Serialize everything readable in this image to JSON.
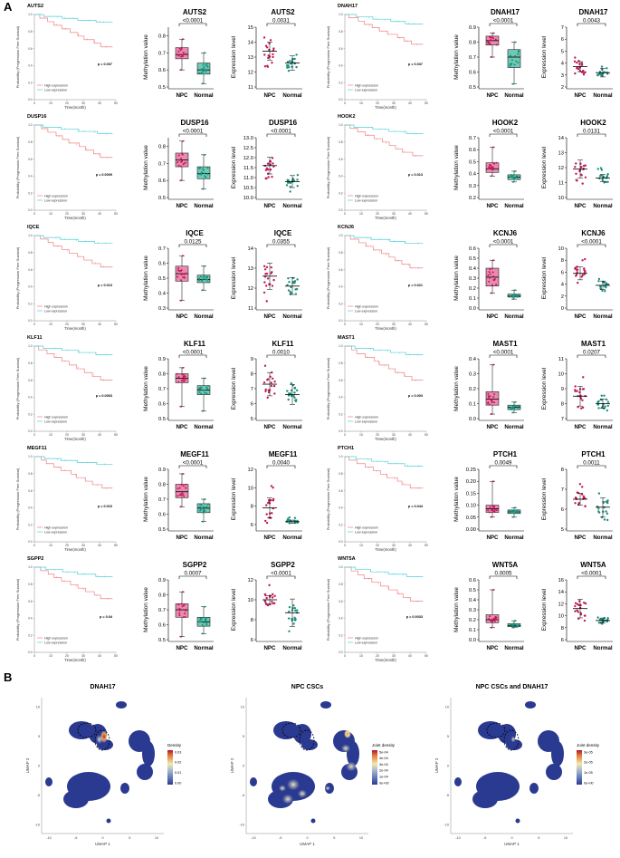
{
  "panels": {
    "a": "A",
    "b": "B"
  },
  "km": {
    "y_label": "Probability (Progression Free Survival)",
    "x_label": "Time(month)",
    "x_ticks": [
      "0",
      "10",
      "20",
      "30",
      "40",
      "50"
    ],
    "y_ticks": [
      "0.0",
      "0.2",
      "0.4",
      "0.6",
      "0.8",
      "1.0"
    ],
    "legend": [
      "High expression",
      "Low expression"
    ]
  },
  "box_axis": {
    "meth_label": "Methylation value",
    "expr_label": "Expression level",
    "groups": [
      "NPC",
      "Normal"
    ]
  },
  "genes": [
    {
      "name": "AUTS2",
      "km_p": "p = 0.007",
      "km_high_end": 0.62,
      "km_low_end": 0.91,
      "meth": {
        "p": "<0.0001",
        "ticks": [
          "0.5",
          "0.6",
          "0.7",
          "0.8"
        ],
        "ylim": [
          0.5,
          0.85
        ],
        "npc": [
          0.6,
          0.665,
          0.69,
          0.73,
          0.78
        ],
        "normal": [
          0.52,
          0.575,
          0.6,
          0.64,
          0.7
        ]
      },
      "expr": {
        "p": "0.0031",
        "ticks": [
          "11",
          "12",
          "13",
          "14",
          "15"
        ],
        "ylim": [
          11,
          15
        ],
        "npc": [
          12.4,
          13.4,
          12.3,
          14.4
        ],
        "normal": [
          11.8,
          12.6,
          11.9,
          13.2
        ]
      }
    },
    {
      "name": "DUSP16",
      "km_p": "p = 0.0009",
      "km_high_end": 0.62,
      "km_low_end": 0.9,
      "meth": {
        "p": "<0.0001",
        "ticks": [
          "0.5",
          "0.6",
          "0.7",
          "0.8"
        ],
        "ylim": [
          0.5,
          0.85
        ],
        "npc": [
          0.6,
          0.68,
          0.72,
          0.76,
          0.83
        ],
        "normal": [
          0.55,
          0.61,
          0.64,
          0.68,
          0.75
        ]
      },
      "expr": {
        "p": "<0.0001",
        "ticks": [
          "10.0",
          "10.5",
          "11.0",
          "11.5",
          "12.0",
          "12.5",
          "13.0"
        ],
        "ylim": [
          10,
          13
        ],
        "npc": [
          10.9,
          11.6,
          10.8,
          12.6
        ],
        "normal": [
          10.3,
          10.8,
          10.2,
          11.3
        ]
      }
    },
    {
      "name": "IQCE",
      "km_p": "p = 0.013",
      "km_high_end": 0.63,
      "km_low_end": 0.91,
      "meth": {
        "p": "0.0125",
        "ticks": [
          "0.3",
          "0.4",
          "0.5",
          "0.6",
          "0.7"
        ],
        "ylim": [
          0.3,
          0.7
        ],
        "npc": [
          0.35,
          0.48,
          0.53,
          0.58,
          0.65
        ],
        "normal": [
          0.42,
          0.47,
          0.49,
          0.52,
          0.58
        ]
      },
      "expr": {
        "p": "0.0355",
        "ticks": [
          "11",
          "12",
          "13",
          "14"
        ],
        "ylim": [
          11,
          14
        ],
        "npc": [
          11.5,
          12.6,
          11.3,
          13.3
        ],
        "normal": [
          11.4,
          12.1,
          11.2,
          12.8
        ]
      }
    },
    {
      "name": "KLF11",
      "km_p": "p = 0.0063",
      "km_high_end": 0.6,
      "km_low_end": 0.9,
      "meth": {
        "p": "<0.0001",
        "ticks": [
          "0.5",
          "0.6",
          "0.7",
          "0.8",
          "0.9"
        ],
        "ylim": [
          0.5,
          0.9
        ],
        "npc": [
          0.58,
          0.74,
          0.77,
          0.8,
          0.84
        ],
        "normal": [
          0.55,
          0.66,
          0.69,
          0.72,
          0.77
        ]
      },
      "expr": {
        "p": "0.0010",
        "ticks": [
          "5",
          "6",
          "7",
          "8",
          "9"
        ],
        "ylim": [
          5,
          9
        ],
        "npc": [
          6.0,
          7.3,
          6.1,
          8.6
        ],
        "normal": [
          5.5,
          6.6,
          5.6,
          7.5
        ]
      }
    },
    {
      "name": "MEGF11",
      "km_p": "p = 0.010",
      "km_high_end": 0.63,
      "km_low_end": 0.91,
      "meth": {
        "p": "<0.0001",
        "ticks": [
          "0.5",
          "0.6",
          "0.7",
          "0.8",
          "0.9"
        ],
        "ylim": [
          0.5,
          0.9
        ],
        "npc": [
          0.65,
          0.71,
          0.75,
          0.8,
          0.87
        ],
        "normal": [
          0.55,
          0.61,
          0.64,
          0.67,
          0.7
        ]
      },
      "expr": {
        "p": "0.0040",
        "ticks": [
          "6",
          "8",
          "10",
          "12"
        ],
        "ylim": [
          5.5,
          12
        ],
        "npc": [
          6.0,
          7.8,
          6.1,
          10.5
        ],
        "normal": [
          6.0,
          6.3,
          6.1,
          6.8
        ]
      }
    },
    {
      "name": "SGPP2",
      "km_p": "p = 0.04",
      "km_high_end": 0.63,
      "km_low_end": 0.89,
      "meth": {
        "p": "0.0007",
        "ticks": [
          "0.5",
          "0.6",
          "0.7",
          "0.8",
          "0.9"
        ],
        "ylim": [
          0.5,
          0.9
        ],
        "npc": [
          0.52,
          0.65,
          0.7,
          0.74,
          0.82
        ],
        "normal": [
          0.54,
          0.59,
          0.62,
          0.65,
          0.72
        ]
      },
      "expr": {
        "p": "<0.0001",
        "ticks": [
          "6",
          "8",
          "10",
          "12"
        ],
        "ylim": [
          6,
          12
        ],
        "npc": [
          9.3,
          10.0,
          9.2,
          11.5
        ],
        "normal": [
          6.4,
          8.7,
          6.5,
          9.6
        ]
      }
    },
    {
      "name": "DNAH17",
      "km_p": "p = 0.037",
      "km_high_end": 0.65,
      "km_low_end": 0.89,
      "meth": {
        "p": "<0.0001",
        "ticks": [
          "0.5",
          "0.6",
          "0.7",
          "0.8",
          "0.9"
        ],
        "ylim": [
          0.5,
          0.9
        ],
        "npc": [
          0.7,
          0.78,
          0.81,
          0.84,
          0.86
        ],
        "normal": [
          0.52,
          0.63,
          0.7,
          0.75,
          0.8
        ]
      },
      "expr": {
        "p": "0.0043",
        "ticks": [
          "2",
          "3",
          "4",
          "5",
          "6",
          "7"
        ],
        "ylim": [
          2,
          7
        ],
        "npc": [
          3.0,
          3.7,
          3.0,
          5.1
        ],
        "normal": [
          2.6,
          3.2,
          2.7,
          3.8
        ]
      }
    },
    {
      "name": "HOOK2",
      "km_p": "p = 0.013",
      "km_high_end": 0.64,
      "km_low_end": 0.9,
      "meth": {
        "p": "<0.0001",
        "ticks": [
          "0.2",
          "0.3",
          "0.4",
          "0.5",
          "0.6",
          "0.7"
        ],
        "ylim": [
          0.2,
          0.7
        ],
        "npc": [
          0.38,
          0.41,
          0.44,
          0.49,
          0.62
        ],
        "normal": [
          0.33,
          0.35,
          0.37,
          0.39,
          0.42
        ]
      },
      "expr": {
        "p": "0.0131",
        "ticks": [
          "10",
          "11",
          "12",
          "13",
          "14"
        ],
        "ylim": [
          10,
          14
        ],
        "npc": [
          10.9,
          11.9,
          10.8,
          13.1
        ],
        "normal": [
          10.9,
          11.3,
          10.8,
          12.0
        ]
      }
    },
    {
      "name": "KCNJ6",
      "km_p": "p = 0.021",
      "km_high_end": 0.62,
      "km_low_end": 0.91,
      "meth": {
        "p": "<0.0001",
        "ticks": [
          "0.0",
          "0.1",
          "0.2",
          "0.3",
          "0.4",
          "0.5",
          "0.6"
        ],
        "ylim": [
          0,
          0.6
        ],
        "npc": [
          0.15,
          0.22,
          0.31,
          0.4,
          0.48
        ],
        "normal": [
          0.09,
          0.11,
          0.12,
          0.14,
          0.18
        ]
      },
      "expr": {
        "p": "<0.0001",
        "ticks": [
          "0",
          "2",
          "4",
          "6",
          "8",
          "10"
        ],
        "ylim": [
          0,
          10
        ],
        "npc": [
          4.0,
          5.8,
          4.1,
          8.5
        ],
        "normal": [
          2.6,
          3.8,
          2.7,
          5.0
        ]
      }
    },
    {
      "name": "MAST1",
      "km_p": "p = 0.003",
      "km_high_end": 0.6,
      "km_low_end": 0.9,
      "meth": {
        "p": "<0.0001",
        "ticks": [
          "0.0",
          "0.1",
          "0.2",
          "0.3",
          "0.4"
        ],
        "ylim": [
          0,
          0.4
        ],
        "npc": [
          0.03,
          0.09,
          0.13,
          0.18,
          0.36
        ],
        "normal": [
          0.04,
          0.06,
          0.075,
          0.09,
          0.11
        ]
      },
      "expr": {
        "p": "0.0207",
        "ticks": [
          "7",
          "8",
          "9",
          "10",
          "11"
        ],
        "ylim": [
          7,
          11
        ],
        "npc": [
          7.4,
          8.5,
          7.3,
          10.4
        ],
        "normal": [
          7.5,
          8.0,
          7.4,
          8.6
        ]
      }
    },
    {
      "name": "PTCH1",
      "km_p": "p = 0.044",
      "km_high_end": 0.63,
      "km_low_end": 0.89,
      "meth": {
        "p": "0.0049",
        "ticks": [
          "0.00",
          "0.05",
          "0.10",
          "0.15",
          "0.20",
          "0.25"
        ],
        "ylim": [
          0,
          0.25
        ],
        "npc": [
          0.05,
          0.07,
          0.085,
          0.1,
          0.2
        ],
        "normal": [
          0.05,
          0.065,
          0.072,
          0.08,
          0.09
        ]
      },
      "expr": {
        "p": "0.0011",
        "ticks": [
          "5",
          "6",
          "7",
          "8"
        ],
        "ylim": [
          5,
          8
        ],
        "npc": [
          6.0,
          6.5,
          6.0,
          7.5
        ],
        "normal": [
          5.3,
          6.1,
          5.4,
          6.8
        ]
      }
    },
    {
      "name": "WNT5A",
      "km_p": "p = 0.0033",
      "km_high_end": 0.6,
      "km_low_end": 0.89,
      "meth": {
        "p": "0.0005",
        "ticks": [
          "0.0",
          "0.1",
          "0.2",
          "0.3",
          "0.4",
          "0.5",
          "0.6"
        ],
        "ylim": [
          0,
          0.6
        ],
        "npc": [
          0.12,
          0.17,
          0.2,
          0.25,
          0.5
        ],
        "normal": [
          0.12,
          0.13,
          0.14,
          0.16,
          0.19
        ]
      },
      "expr": {
        "p": "<0.0001",
        "ticks": [
          "6",
          "8",
          "10",
          "12",
          "14",
          "16"
        ],
        "ylim": [
          6,
          16
        ],
        "npc": [
          8.6,
          11.2,
          8.5,
          14.0
        ],
        "normal": [
          8.5,
          9.2,
          8.4,
          10.2
        ]
      }
    }
  ],
  "umap": {
    "x_label": "UMAP 1",
    "y_label": "UMAP 2",
    "x_ticks": [
      "-10",
      "-5",
      "0",
      "5",
      "10"
    ],
    "y_ticks": [
      "-10",
      "-5",
      "0",
      "5",
      "10"
    ],
    "panels": [
      {
        "title": "DNAH17",
        "legend_title": "Density",
        "legend_ticks": [
          "0.03",
          "0.02",
          "0.01",
          "0.00"
        ]
      },
      {
        "title": "NPC CSCs",
        "legend_title": "Joint density",
        "legend_ticks": [
          "5e-04",
          "4e-04",
          "3e-04",
          "2e-04",
          "1e-04",
          "0e+00"
        ]
      },
      {
        "title": "NPC CSCs and DNAH17",
        "legend_title": "Joint density",
        "legend_ticks": [
          "3e-05",
          "2e-05",
          "1e-05",
          "0e+00"
        ]
      }
    ]
  },
  "colors": {
    "npc": "#c2185b",
    "npc_fill": "#e88bb0",
    "normal": "#1a8f7d",
    "normal_fill": "#6fc9b5",
    "km_high": "#f08080",
    "km_low": "#4ecfd8",
    "umap": "#2b3a91"
  }
}
